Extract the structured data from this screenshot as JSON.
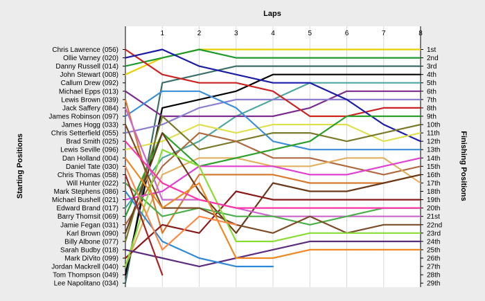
{
  "chart_data": {
    "type": "line",
    "title": "",
    "top_axis_label": "Laps",
    "left_axis_label": "Starting Positions",
    "right_axis_label": "Finishing Positions",
    "laps": [
      0,
      1,
      2,
      3,
      4,
      5,
      6,
      7,
      8
    ],
    "x_ticks": [
      "1",
      "2",
      "3",
      "4",
      "5",
      "6",
      "7",
      "8"
    ],
    "grid": true,
    "drivers": [
      "Chris Lawrence (056)",
      "Ollie Varney (020)",
      "Danny Russell (014)",
      "John Stewart (008)",
      "Callum Drew (092)",
      "Michael Epps (013)",
      "Lewis Brown (039)",
      "Jack Saffery (084)",
      "James Robinson (097)",
      "James Hogg (033)",
      "Chris Setterfield (055)",
      "Brad Smith (025)",
      "Lewis Seville (096)",
      "Dan Holland (004)",
      "Daniel Tate (030)",
      "Chris Thomas (058)",
      "Will Hunter (022)",
      "Mark Stephens (086)",
      "Michael Bushell (021)",
      "Edward Brand (017)",
      "Barry Thomsit (069)",
      "Jamie Fegan (031)",
      "Karl Brown (090)",
      "Billy Albone (077)",
      "Sarah Budby (018)",
      "Mark DiVito (099)",
      "Jordan Mackrell (040)",
      "Tom Thompson (049)",
      "Lee Napolitano (034)"
    ],
    "finishing_labels": [
      "1st",
      "2nd",
      "3rd",
      "4th",
      "5th",
      "6th",
      "7th",
      "8th",
      "9th",
      "10th",
      "11th",
      "12th",
      "13th",
      "14th",
      "15th",
      "16th",
      "17th",
      "18th",
      "19th",
      "20th",
      "21st",
      "22nd",
      "23rd",
      "24th",
      "25th",
      "26th",
      "27th",
      "28th",
      "29th"
    ],
    "series": [
      {
        "color": "#e8d000",
        "positions": [
          4,
          2,
          1,
          1,
          1,
          1,
          1,
          1,
          1
        ]
      },
      {
        "color": "#1f9a2f",
        "positions": [
          3,
          2,
          1,
          2,
          2,
          2,
          2,
          2,
          2
        ]
      },
      {
        "color": "#3c6f6a",
        "positions": [
          29,
          5,
          4,
          3,
          3,
          3,
          3,
          3,
          3
        ]
      },
      {
        "color": "#000000",
        "positions": [
          28,
          8,
          7,
          6,
          4,
          4,
          4,
          4,
          4
        ]
      },
      {
        "color": "#4fa6a0",
        "positions": [
          20,
          14,
          12,
          9,
          7,
          5,
          5,
          5,
          5
        ]
      },
      {
        "color": "#7b2c8c",
        "positions": [
          6,
          9,
          9,
          9,
          9,
          8,
          6,
          6,
          6
        ]
      },
      {
        "color": "#8a7fd0",
        "positions": [
          11,
          10,
          8,
          7,
          7,
          7,
          7,
          7,
          7
        ]
      },
      {
        "color": "#cc2222",
        "positions": [
          1,
          4,
          5,
          5,
          6,
          9,
          9,
          8,
          8
        ]
      },
      {
        "color": "#1c1ca8",
        "positions": [
          2,
          1,
          3,
          4,
          5,
          5,
          7,
          10,
          12
        ]
      },
      {
        "color": "#dfe050",
        "positions": [
          13,
          12,
          10,
          11,
          10,
          10,
          10,
          12,
          11
        ]
      },
      {
        "color": "#7a7a2a",
        "positions": [
          24,
          9,
          13,
          12,
          11,
          11,
          12,
          11,
          10
        ]
      },
      {
        "color": "#3d8fd8",
        "positions": [
          9,
          6,
          6,
          8,
          12,
          13,
          13,
          13,
          13
        ]
      },
      {
        "color": "#b06a40",
        "positions": [
          22,
          15,
          11,
          12,
          14,
          14,
          15,
          16,
          15
        ]
      },
      {
        "color": "#e2b060",
        "positions": [
          27,
          16,
          14,
          14,
          15,
          15,
          14,
          14,
          17
        ]
      },
      {
        "color": "#2aa02a",
        "positions": [
          21,
          11,
          15,
          14,
          13,
          12,
          9,
          9,
          9
        ]
      },
      {
        "color": "#e040d0",
        "positions": [
          19,
          18,
          15,
          15,
          15,
          16,
          16,
          15,
          14
        ]
      },
      {
        "color": "#d87a30",
        "positions": [
          7,
          23,
          16,
          16,
          16,
          17,
          17,
          17,
          16
        ]
      },
      {
        "color": "#6a3a1a",
        "positions": [
          23,
          11,
          18,
          23,
          17,
          18,
          18,
          17,
          16
        ]
      },
      {
        "color": "#8a1a1a",
        "positions": [
          26,
          22,
          23,
          18,
          19,
          19,
          19,
          19,
          19
        ]
      },
      {
        "color": "#cc66cc",
        "positions": [
          8,
          19,
          19,
          20,
          21,
          21,
          21,
          21,
          21
        ]
      },
      {
        "color": "#4ab04a",
        "positions": [
          17,
          21,
          20,
          21,
          21,
          22,
          21,
          20,
          20
        ]
      },
      {
        "color": "#7c4c28",
        "positions": [
          10,
          20,
          20,
          22,
          23,
          21,
          23,
          22,
          22
        ]
      },
      {
        "color": "#88dd33",
        "positions": [
          27,
          13,
          15,
          24,
          24,
          23,
          23,
          23,
          23
        ]
      },
      {
        "color": "#5b2d7c",
        "positions": [
          25,
          26,
          27,
          26,
          25,
          24,
          24,
          24,
          24
        ]
      },
      {
        "color": "#ff33aa",
        "positions": [
          12,
          17,
          19,
          20,
          20,
          20,
          20,
          20,
          20
        ]
      },
      {
        "color": "#ee8822",
        "positions": [
          14,
          20,
          17,
          26,
          26,
          25,
          25,
          25,
          25
        ]
      },
      {
        "color": "#2e8ad8",
        "positions": [
          18,
          24,
          26,
          27,
          27
        ]
      },
      {
        "color": "#ff8844",
        "positions": [
          15,
          25,
          21,
          22
        ]
      },
      {
        "color": "#aa2222",
        "positions": [
          16,
          28
        ]
      }
    ]
  }
}
